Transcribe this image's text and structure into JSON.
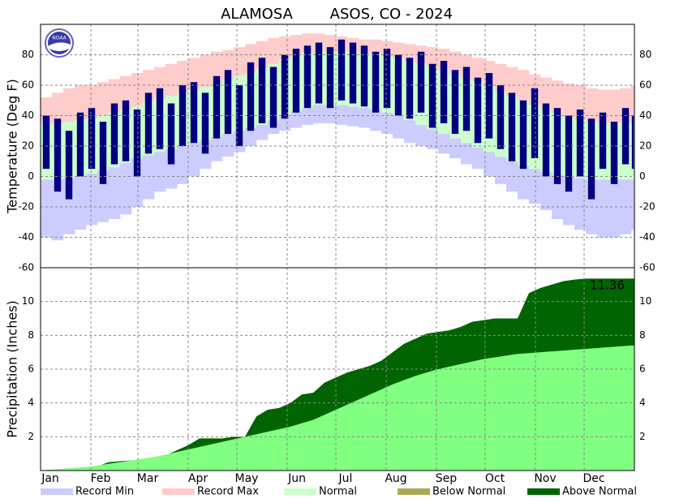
{
  "title": "ALAMOSA        ASOS, CO - 2024",
  "logo": "NOAA",
  "legend": [
    {
      "name": "Record Min",
      "color": "#ccccff"
    },
    {
      "name": "Record Max",
      "color": "#ffcccc"
    },
    {
      "name": "Normal",
      "color": "#ccffcc"
    },
    {
      "name": "Below Normal",
      "color": "#aaaa55"
    },
    {
      "name": "Above Normal",
      "color": "#006400"
    }
  ],
  "chart_data": [
    {
      "type": "temperature-range",
      "ylabel": "Temperature (Deg F)",
      "x": [
        0,
        7,
        14,
        21,
        28,
        35,
        42,
        49,
        56,
        63,
        70,
        77,
        84,
        91,
        98,
        105,
        112,
        119,
        126,
        133,
        140,
        147,
        154,
        161,
        168,
        175,
        182,
        189,
        196,
        203,
        210,
        217,
        224,
        231,
        238,
        245,
        252,
        259,
        266,
        273,
        280,
        287,
        294,
        301,
        308,
        315,
        322,
        329,
        336,
        343,
        350,
        357,
        364
      ],
      "xlim": [
        0,
        366
      ],
      "xticks": [
        31,
        60,
        91,
        121,
        152,
        182,
        213,
        244,
        274,
        305,
        335
      ],
      "ylim": [
        -60,
        100
      ],
      "yticks": [
        -60,
        -40,
        -20,
        0,
        20,
        40,
        60,
        80
      ],
      "grid": true,
      "series": [
        {
          "name": "Record Min",
          "color": "#ccccff",
          "values": [
            -40,
            -42,
            -38,
            -35,
            -32,
            -30,
            -28,
            -25,
            -20,
            -15,
            -10,
            -8,
            -5,
            0,
            5,
            10,
            13,
            16,
            20,
            24,
            28,
            30,
            32,
            34,
            35,
            35,
            34,
            33,
            32,
            30,
            28,
            25,
            22,
            20,
            18,
            15,
            12,
            8,
            5,
            0,
            -5,
            -10,
            -15,
            -18,
            -22,
            -28,
            -32,
            -35,
            -38,
            -40,
            -40,
            -38,
            -35
          ]
        },
        {
          "name": "Record Max",
          "color": "#ffcccc",
          "values": [
            52,
            55,
            58,
            60,
            60,
            62,
            64,
            66,
            68,
            70,
            72,
            74,
            76,
            78,
            80,
            82,
            83,
            85,
            87,
            89,
            91,
            92,
            93,
            94,
            94,
            93,
            92,
            91,
            90,
            90,
            89,
            88,
            87,
            86,
            85,
            84,
            82,
            80,
            78,
            76,
            74,
            72,
            70,
            67,
            65,
            63,
            61,
            60,
            58,
            57,
            57,
            58,
            60
          ]
        },
        {
          "name": "Normal",
          "color": "#ccffcc",
          "low": [
            -2,
            -2,
            -1,
            0,
            2,
            4,
            6,
            9,
            12,
            14,
            16,
            18,
            20,
            22,
            24,
            26,
            28,
            30,
            32,
            34,
            37,
            40,
            43,
            45,
            47,
            47,
            47,
            46,
            45,
            44,
            42,
            40,
            37,
            34,
            31,
            28,
            25,
            22,
            19,
            16,
            13,
            10,
            7,
            5,
            3,
            1,
            0,
            -1,
            -2,
            -2,
            -2,
            -2,
            -2
          ],
          "high": [
            35,
            35,
            36,
            37,
            38,
            40,
            42,
            44,
            46,
            49,
            51,
            53,
            55,
            57,
            59,
            61,
            63,
            66,
            68,
            71,
            74,
            77,
            79,
            81,
            82,
            82,
            82,
            82,
            81,
            80,
            79,
            78,
            76,
            74,
            72,
            70,
            67,
            64,
            62,
            59,
            56,
            53,
            50,
            47,
            44,
            41,
            39,
            37,
            36,
            35,
            35,
            35,
            35
          ]
        },
        {
          "color": "#000080",
          "low": [
            5,
            -10,
            -15,
            0,
            5,
            -5,
            8,
            10,
            0,
            15,
            18,
            8,
            20,
            22,
            15,
            25,
            28,
            20,
            30,
            35,
            32,
            38,
            42,
            45,
            48,
            45,
            50,
            48,
            46,
            42,
            45,
            40,
            38,
            42,
            32,
            35,
            28,
            30,
            22,
            25,
            18,
            10,
            5,
            12,
            0,
            -5,
            -10,
            0,
            -15,
            5,
            -5,
            8,
            5
          ],
          "high": [
            40,
            38,
            30,
            42,
            45,
            36,
            48,
            50,
            44,
            55,
            58,
            48,
            60,
            62,
            55,
            66,
            70,
            60,
            75,
            78,
            72,
            80,
            84,
            86,
            88,
            85,
            90,
            88,
            86,
            82,
            84,
            80,
            78,
            82,
            74,
            76,
            70,
            72,
            65,
            68,
            60,
            55,
            50,
            58,
            48,
            45,
            40,
            44,
            38,
            42,
            36,
            45,
            40
          ]
        }
      ]
    },
    {
      "type": "cumulative-area",
      "ylabel": "Precipitation (Inches)",
      "annotation": "11.36",
      "x": [
        0,
        7,
        14,
        21,
        28,
        35,
        42,
        49,
        56,
        63,
        70,
        77,
        84,
        91,
        98,
        105,
        112,
        119,
        126,
        133,
        140,
        147,
        154,
        161,
        168,
        175,
        182,
        189,
        196,
        203,
        210,
        217,
        224,
        231,
        238,
        245,
        252,
        259,
        266,
        273,
        280,
        287,
        294,
        301,
        308,
        315,
        322,
        329,
        336,
        343,
        350,
        357,
        364
      ],
      "xlim": [
        0,
        366
      ],
      "xticks": [
        {
          "value": 0,
          "label": "Jan"
        },
        {
          "value": 31,
          "label": "Feb"
        },
        {
          "value": 60,
          "label": "Mar"
        },
        {
          "value": 91,
          "label": "Apr"
        },
        {
          "value": 121,
          "label": "May"
        },
        {
          "value": 152,
          "label": "Jun"
        },
        {
          "value": 182,
          "label": "Jul"
        },
        {
          "value": 213,
          "label": "Aug"
        },
        {
          "value": 244,
          "label": "Sep"
        },
        {
          "value": 274,
          "label": "Oct"
        },
        {
          "value": 305,
          "label": "Nov"
        },
        {
          "value": 335,
          "label": "Dec"
        }
      ],
      "ylim": [
        0,
        12
      ],
      "yticks": [
        2,
        4,
        6,
        8,
        10
      ],
      "grid": true,
      "series": [
        {
          "name": "Above Normal",
          "color": "#006400",
          "values": [
            0,
            0.05,
            0.1,
            0.15,
            0.2,
            0.25,
            0.5,
            0.55,
            0.6,
            0.65,
            0.7,
            0.9,
            1.2,
            1.5,
            1.9,
            1.9,
            1.9,
            2.0,
            2.0,
            3.2,
            3.6,
            3.7,
            4.0,
            4.5,
            4.6,
            5.2,
            5.5,
            5.8,
            6.0,
            6.2,
            6.5,
            7.0,
            7.5,
            7.8,
            8.1,
            8.2,
            8.3,
            8.5,
            8.8,
            8.9,
            9.0,
            9.0,
            9.0,
            10.5,
            10.8,
            11.0,
            11.2,
            11.3,
            11.36,
            11.36,
            11.36,
            11.36,
            11.36
          ]
        },
        {
          "name": "Normal",
          "color": "#80ff80",
          "values": [
            0,
            0.05,
            0.1,
            0.15,
            0.2,
            0.3,
            0.4,
            0.5,
            0.6,
            0.7,
            0.8,
            0.95,
            1.1,
            1.25,
            1.4,
            1.55,
            1.7,
            1.85,
            2.0,
            2.15,
            2.3,
            2.45,
            2.6,
            2.8,
            3.0,
            3.3,
            3.6,
            3.9,
            4.2,
            4.5,
            4.8,
            5.1,
            5.35,
            5.6,
            5.8,
            6.0,
            6.15,
            6.3,
            6.45,
            6.6,
            6.7,
            6.8,
            6.9,
            6.95,
            7.0,
            7.05,
            7.1,
            7.15,
            7.2,
            7.25,
            7.3,
            7.35,
            7.4
          ]
        }
      ]
    }
  ]
}
